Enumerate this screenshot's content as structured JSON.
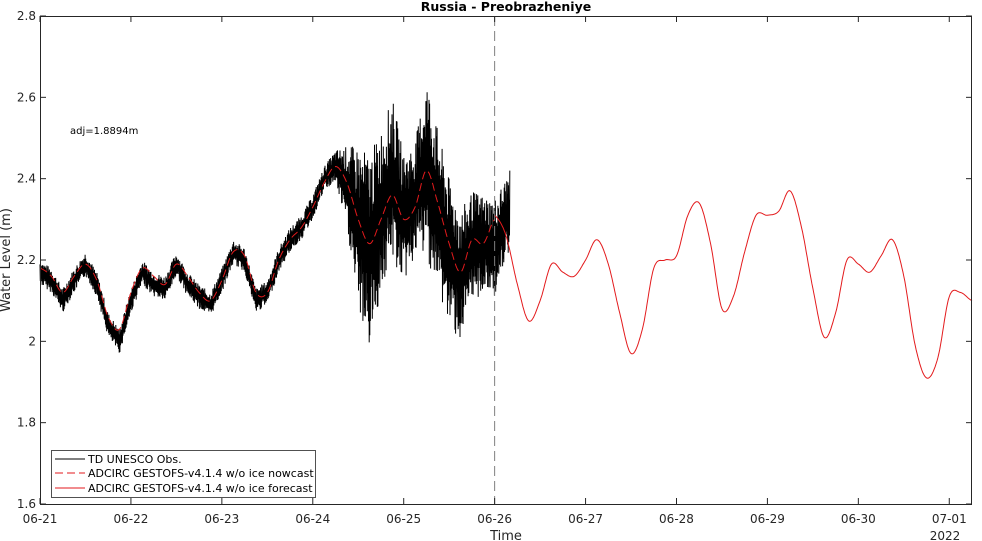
{
  "chart_data": {
    "type": "line",
    "title": "Russia - Preobrazheniye",
    "xlabel": "Time",
    "ylabel": "Water Level (m)",
    "year_label": "2022",
    "annotation": "adj=1.8894m",
    "ylim": [
      1.6,
      2.8
    ],
    "yticks": [
      1.6,
      1.8,
      2.0,
      2.2,
      2.4,
      2.6,
      2.8
    ],
    "ytick_labels": [
      "1.6",
      "1.8",
      "2",
      "2.2",
      "2.4",
      "2.6",
      "2.8"
    ],
    "xlim": [
      "2022-06-21",
      "2022-07-01T06:00"
    ],
    "xticks": [
      "2022-06-21",
      "2022-06-22",
      "2022-06-23",
      "2022-06-24",
      "2022-06-25",
      "2022-06-26",
      "2022-06-27",
      "2022-06-28",
      "2022-06-29",
      "2022-06-30",
      "2022-07-01"
    ],
    "xtick_labels": [
      "06-21",
      "06-22",
      "06-23",
      "06-24",
      "06-25",
      "06-26",
      "06-27",
      "06-28",
      "06-29",
      "06-30",
      "07-01"
    ],
    "nowcast_divider": "2022-06-26",
    "grid": false,
    "legend_position": "bottom-left",
    "series": [
      {
        "name": "TD UNESCO Obs.",
        "color": "#000000",
        "style": "solid",
        "x": [
          "2022-06-21T00:00",
          "2022-06-21T03:00",
          "2022-06-21T06:00",
          "2022-06-21T09:00",
          "2022-06-21T12:00",
          "2022-06-21T15:00",
          "2022-06-21T18:00",
          "2022-06-21T21:00",
          "2022-06-22T00:00",
          "2022-06-22T03:00",
          "2022-06-22T06:00",
          "2022-06-22T09:00",
          "2022-06-22T12:00",
          "2022-06-22T15:00",
          "2022-06-22T18:00",
          "2022-06-22T21:00",
          "2022-06-23T00:00",
          "2022-06-23T03:00",
          "2022-06-23T06:00",
          "2022-06-23T09:00",
          "2022-06-23T12:00",
          "2022-06-23T15:00",
          "2022-06-23T18:00",
          "2022-06-23T21:00",
          "2022-06-24T00:00",
          "2022-06-24T03:00",
          "2022-06-24T06:00",
          "2022-06-24T09:00",
          "2022-06-24T12:00",
          "2022-06-24T15:00",
          "2022-06-24T18:00",
          "2022-06-24T21:00",
          "2022-06-25T00:00",
          "2022-06-25T03:00",
          "2022-06-25T06:00",
          "2022-06-25T09:00",
          "2022-06-25T12:00",
          "2022-06-25T15:00",
          "2022-06-25T18:00",
          "2022-06-25T21:00",
          "2022-06-26T00:00",
          "2022-06-26T04:00"
        ],
        "y": [
          2.17,
          2.15,
          2.1,
          2.15,
          2.19,
          2.14,
          2.04,
          2.0,
          2.1,
          2.17,
          2.14,
          2.13,
          2.19,
          2.14,
          2.11,
          2.09,
          2.15,
          2.22,
          2.2,
          2.1,
          2.12,
          2.2,
          2.25,
          2.28,
          2.33,
          2.4,
          2.43,
          2.38,
          2.28,
          2.22,
          2.32,
          2.4,
          2.3,
          2.35,
          2.43,
          2.32,
          2.22,
          2.16,
          2.23,
          2.24,
          2.23,
          2.32
        ],
        "spread": [
          0.03,
          0.03,
          0.03,
          0.03,
          0.03,
          0.03,
          0.03,
          0.03,
          0.03,
          0.03,
          0.03,
          0.03,
          0.03,
          0.03,
          0.03,
          0.03,
          0.03,
          0.03,
          0.03,
          0.03,
          0.03,
          0.03,
          0.03,
          0.03,
          0.03,
          0.03,
          0.04,
          0.1,
          0.2,
          0.24,
          0.2,
          0.2,
          0.16,
          0.14,
          0.22,
          0.2,
          0.18,
          0.16,
          0.14,
          0.12,
          0.12,
          0.1
        ]
      },
      {
        "name": "ADCIRC GESTOFS-v4.1.4 w/o ice nowcast",
        "color": "#e31a1c",
        "style": "dashed",
        "x": [
          "2022-06-21T00:00",
          "2022-06-21T03:00",
          "2022-06-21T06:00",
          "2022-06-21T09:00",
          "2022-06-21T12:00",
          "2022-06-21T15:00",
          "2022-06-21T18:00",
          "2022-06-21T21:00",
          "2022-06-22T00:00",
          "2022-06-22T03:00",
          "2022-06-22T06:00",
          "2022-06-22T09:00",
          "2022-06-22T12:00",
          "2022-06-22T15:00",
          "2022-06-22T18:00",
          "2022-06-22T21:00",
          "2022-06-23T00:00",
          "2022-06-23T03:00",
          "2022-06-23T06:00",
          "2022-06-23T09:00",
          "2022-06-23T12:00",
          "2022-06-23T15:00",
          "2022-06-23T18:00",
          "2022-06-23T21:00",
          "2022-06-24T00:00",
          "2022-06-24T03:00",
          "2022-06-24T06:00",
          "2022-06-24T09:00",
          "2022-06-24T12:00",
          "2022-06-24T15:00",
          "2022-06-24T18:00",
          "2022-06-24T21:00",
          "2022-06-25T00:00",
          "2022-06-25T03:00",
          "2022-06-25T06:00",
          "2022-06-25T09:00",
          "2022-06-25T12:00",
          "2022-06-25T15:00",
          "2022-06-25T18:00",
          "2022-06-25T21:00",
          "2022-06-26T00:00"
        ],
        "y": [
          2.18,
          2.16,
          2.12,
          2.16,
          2.19,
          2.15,
          2.06,
          2.03,
          2.12,
          2.18,
          2.16,
          2.14,
          2.19,
          2.16,
          2.12,
          2.1,
          2.15,
          2.22,
          2.21,
          2.12,
          2.12,
          2.2,
          2.25,
          2.28,
          2.33,
          2.39,
          2.43,
          2.39,
          2.3,
          2.24,
          2.3,
          2.36,
          2.3,
          2.33,
          2.42,
          2.34,
          2.24,
          2.17,
          2.25,
          2.24,
          2.3
        ]
      },
      {
        "name": "ADCIRC GESTOFS-v4.1.4 w/o ice forecast",
        "color": "#e31a1c",
        "style": "solid",
        "x": [
          "2022-06-26T00:00",
          "2022-06-26T03:00",
          "2022-06-26T06:00",
          "2022-06-26T09:00",
          "2022-06-26T12:00",
          "2022-06-26T15:00",
          "2022-06-26T18:00",
          "2022-06-26T21:00",
          "2022-06-27T00:00",
          "2022-06-27T03:00",
          "2022-06-27T06:00",
          "2022-06-27T09:00",
          "2022-06-27T12:00",
          "2022-06-27T15:00",
          "2022-06-27T18:00",
          "2022-06-27T21:00",
          "2022-06-28T00:00",
          "2022-06-28T03:00",
          "2022-06-28T06:00",
          "2022-06-28T09:00",
          "2022-06-28T12:00",
          "2022-06-28T15:00",
          "2022-06-28T18:00",
          "2022-06-28T21:00",
          "2022-06-29T00:00",
          "2022-06-29T03:00",
          "2022-06-29T06:00",
          "2022-06-29T09:00",
          "2022-06-29T12:00",
          "2022-06-29T15:00",
          "2022-06-29T18:00",
          "2022-06-29T21:00",
          "2022-06-30T00:00",
          "2022-06-30T03:00",
          "2022-06-30T06:00",
          "2022-06-30T09:00",
          "2022-06-30T12:00",
          "2022-06-30T15:00",
          "2022-06-30T18:00",
          "2022-06-30T21:00",
          "2022-07-01T00:00",
          "2022-07-01T03:00",
          "2022-07-01T06:00"
        ],
        "y": [
          2.31,
          2.26,
          2.14,
          2.05,
          2.1,
          2.19,
          2.17,
          2.16,
          2.2,
          2.25,
          2.19,
          2.07,
          1.97,
          2.03,
          2.18,
          2.2,
          2.21,
          2.31,
          2.34,
          2.24,
          2.08,
          2.11,
          2.22,
          2.31,
          2.31,
          2.32,
          2.37,
          2.28,
          2.13,
          2.01,
          2.07,
          2.2,
          2.19,
          2.17,
          2.21,
          2.25,
          2.16,
          1.99,
          1.91,
          1.96,
          2.11,
          2.12,
          2.1
        ]
      }
    ]
  }
}
